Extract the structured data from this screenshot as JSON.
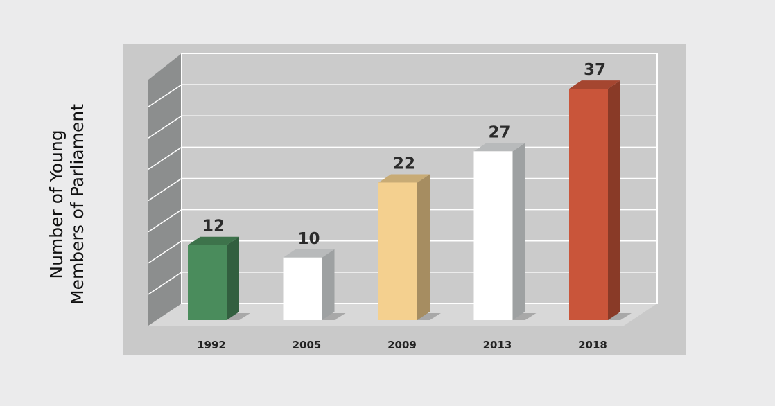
{
  "chart_data": {
    "type": "bar",
    "title": "",
    "xlabel": "",
    "ylabel_lines": [
      "Number of Young",
      "Members of Parliament"
    ],
    "categories": [
      "1992",
      "2005",
      "2009",
      "2013",
      "2018"
    ],
    "values": [
      12,
      10,
      22,
      27,
      37
    ],
    "ylim": [
      0,
      40
    ],
    "grid": true,
    "bar_colors": [
      "#4a8c5c",
      "#ffffff",
      "#f4d08f",
      "#ffffff",
      "#c9553a"
    ],
    "panel_color": "#c9c9c9",
    "wall_color": "#8c8e8e",
    "background_color": "#ebebec"
  }
}
